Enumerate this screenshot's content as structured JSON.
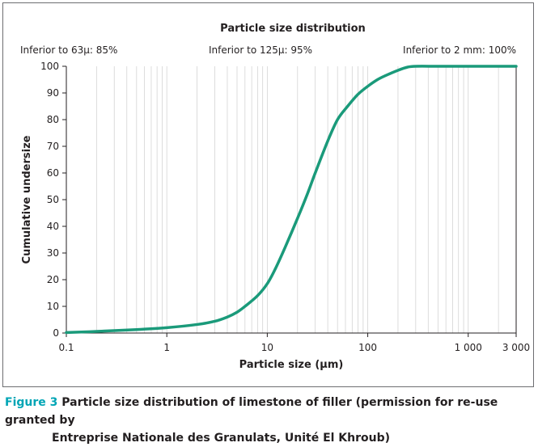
{
  "chart_data": {
    "type": "line",
    "title": "Particle size distribution",
    "annotations": [
      "Inferior to 63μ: 85%",
      "Inferior to 125μ: 95%",
      "Inferior to 2 mm: 100%"
    ],
    "xlabel": "Particle size (μm)",
    "ylabel": "Cumulative undersize",
    "x_scale": "log",
    "xlim": [
      0.1,
      3000
    ],
    "ylim": [
      0,
      100
    ],
    "x_ticks": [
      {
        "value": 0.1,
        "label": "0.1"
      },
      {
        "value": 1,
        "label": "1"
      },
      {
        "value": 10,
        "label": "10"
      },
      {
        "value": 100,
        "label": "100"
      },
      {
        "value": 1000,
        "label": "1 000"
      },
      {
        "value": 3000,
        "label": "3 000"
      }
    ],
    "y_ticks": [
      0,
      10,
      20,
      30,
      40,
      50,
      60,
      70,
      80,
      90,
      100
    ],
    "grid": "vertical log minor lines",
    "line_color": "#1a9a7a",
    "series": [
      {
        "x": [
          0.1,
          0.2,
          0.5,
          1,
          2,
          3,
          4,
          5,
          6,
          8,
          10,
          12,
          15,
          20,
          25,
          30,
          40,
          50,
          63,
          80,
          100,
          125,
          150,
          200,
          250,
          300,
          500,
          1000,
          2000,
          3000
        ],
        "y": [
          0.2,
          0.6,
          1.3,
          2.0,
          3.2,
          4.4,
          6.0,
          7.8,
          10.0,
          14.0,
          18.5,
          24.0,
          32.0,
          43.0,
          52.0,
          60.0,
          72.0,
          80.0,
          85.0,
          89.5,
          92.5,
          95.0,
          96.5,
          98.5,
          99.7,
          100,
          100,
          100,
          100,
          100
        ]
      }
    ]
  },
  "caption": {
    "figure_label": "Figure 3",
    "line1": "Particle size distribution of limestone of filler (permission for re-use granted by",
    "line2": "Entreprise Nationale des Granulats, Unité El Khroub)"
  }
}
